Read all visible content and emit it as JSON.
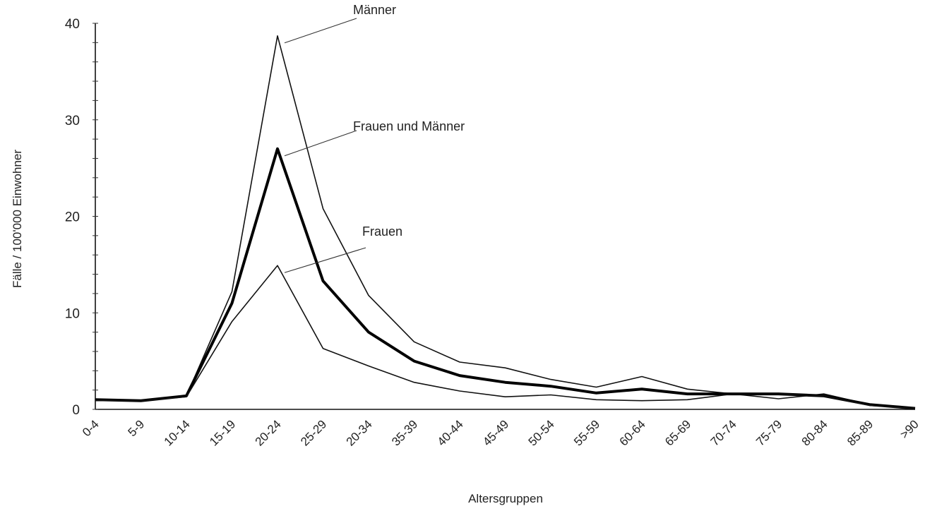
{
  "chart_data": {
    "type": "line",
    "title": "",
    "xlabel": "Altersgruppen",
    "ylabel": "Fälle / 100'000 Einwohner",
    "ylim": [
      0,
      40
    ],
    "yticks": [
      "0",
      "10",
      "20",
      "30",
      "40"
    ],
    "grid": false,
    "legend": "inline labels",
    "categories": [
      "0-4",
      "5-9",
      "10-14",
      "15-19",
      "20-24",
      "25-29",
      "20-34",
      "35-39",
      "40-44",
      "45-49",
      "50-54",
      "55-59",
      "60-64",
      "65-69",
      "70-74",
      "75-79",
      "80-84",
      "85-89",
      ">90"
    ],
    "series": [
      {
        "name": "Männer",
        "color": "#111111",
        "weight": "thin",
        "values": [
          1.0,
          0.9,
          1.4,
          12.2,
          38.7,
          20.8,
          11.8,
          7.0,
          4.9,
          4.3,
          3.1,
          2.3,
          3.4,
          2.1,
          1.6,
          1.1,
          1.6,
          0.5,
          0.1
        ]
      },
      {
        "name": "Frauen und Männer",
        "color": "#000000",
        "weight": "thick",
        "values": [
          1.0,
          0.9,
          1.4,
          11.0,
          27.0,
          13.3,
          8.0,
          5.0,
          3.5,
          2.8,
          2.4,
          1.7,
          2.1,
          1.6,
          1.6,
          1.6,
          1.4,
          0.5,
          0.1
        ]
      },
      {
        "name": "Frauen",
        "color": "#111111",
        "weight": "thin",
        "values": [
          0.9,
          0.9,
          1.3,
          9.1,
          14.9,
          6.3,
          4.5,
          2.8,
          1.9,
          1.3,
          1.5,
          1.0,
          0.9,
          1.0,
          1.6,
          1.6,
          1.4,
          0.4,
          0.1
        ]
      }
    ]
  }
}
